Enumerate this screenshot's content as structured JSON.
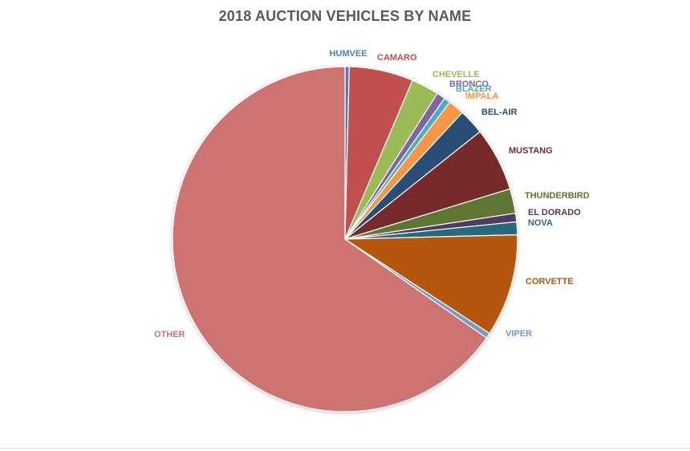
{
  "chart_data": {
    "type": "pie",
    "title": "2018 AUCTION VEHICLES BY NAME",
    "start_angle_deg": 0,
    "direction": "clockwise",
    "slices": [
      {
        "name": "HUMVEE",
        "value": 0.4,
        "color": "#4f81bd"
      },
      {
        "name": "CAMARO",
        "value": 6.0,
        "color": "#c0504d"
      },
      {
        "name": "CHEVELLE",
        "value": 2.6,
        "color": "#9bbb59"
      },
      {
        "name": "BRONCO",
        "value": 0.8,
        "color": "#8064a2"
      },
      {
        "name": "BLAZER",
        "value": 0.6,
        "color": "#4bacc6"
      },
      {
        "name": "IMPALA",
        "value": 1.5,
        "color": "#f79646"
      },
      {
        "name": "BEL-AIR",
        "value": 2.4,
        "color": "#2c4d75"
      },
      {
        "name": "MUSTANG",
        "value": 6.0,
        "color": "#772c2a"
      },
      {
        "name": "THUNDERBIRD",
        "value": 2.3,
        "color": "#5f7530"
      },
      {
        "name": "EL DORADO",
        "value": 0.8,
        "color": "#4d3b62"
      },
      {
        "name": "NOVA",
        "value": 1.2,
        "color": "#276a7c"
      },
      {
        "name": "CORVETTE",
        "value": 9.6,
        "color": "#b65708"
      },
      {
        "name": "VIPER",
        "value": 0.5,
        "color": "#729aca"
      },
      {
        "name": "OTHER",
        "value": 65.3,
        "color": "#cd7371"
      }
    ]
  }
}
